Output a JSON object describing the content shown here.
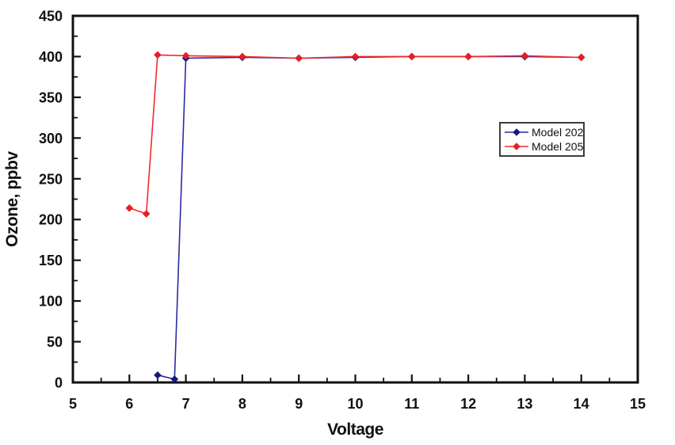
{
  "page": {
    "background": "#ffffff",
    "text_color": "#111111"
  },
  "chart_data": {
    "type": "line",
    "title": "",
    "xlabel": "Voltage",
    "ylabel": "Ozone, ppbv",
    "xlim": [
      5,
      15
    ],
    "ylim": [
      0,
      450
    ],
    "x_ticks": [
      5,
      6,
      7,
      8,
      9,
      10,
      11,
      12,
      13,
      14,
      15
    ],
    "y_ticks": [
      0,
      50,
      100,
      150,
      200,
      250,
      300,
      350,
      400,
      450
    ],
    "x_minor_step": 0.5,
    "y_minor_step": 25,
    "grid": false,
    "frame": true,
    "axis_color": "#111111",
    "legend_position": "inside-upper-right",
    "series": [
      {
        "name": "Model 202",
        "line_color": "#2A2AA4",
        "marker_color": "#17177E",
        "marker": "diamond",
        "points": [
          [
            6.5,
            9
          ],
          [
            6.8,
            4
          ],
          [
            7,
            398
          ],
          [
            8,
            399
          ],
          [
            9,
            398
          ],
          [
            10,
            399
          ],
          [
            11,
            400
          ],
          [
            12,
            400
          ],
          [
            13,
            400
          ],
          [
            14,
            399
          ]
        ]
      },
      {
        "name": "Model 205",
        "line_color": "#F02B2B",
        "marker_color": "#E91C24",
        "marker": "diamond",
        "points": [
          [
            6,
            214
          ],
          [
            6.3,
            207
          ],
          [
            6.5,
            402
          ],
          [
            7,
            401
          ],
          [
            8,
            400
          ],
          [
            9,
            398
          ],
          [
            10,
            400
          ],
          [
            11,
            400
          ],
          [
            12,
            400
          ],
          [
            13,
            401
          ],
          [
            14,
            399
          ]
        ]
      }
    ]
  }
}
